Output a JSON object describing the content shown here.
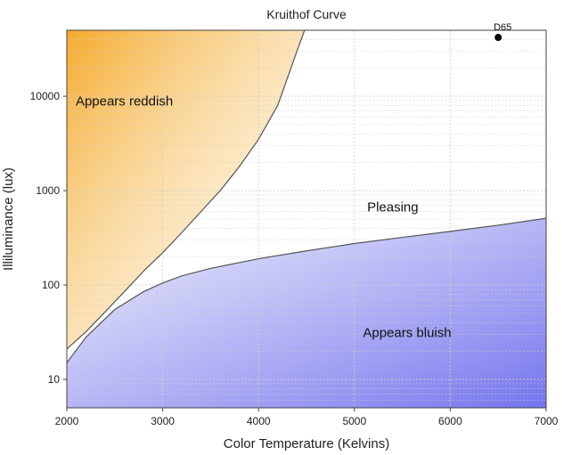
{
  "chart_data": {
    "type": "line",
    "title": "Kruithof Curve",
    "xlabel": "Color Temperature (Kelvins)",
    "ylabel": "Illiluminance (lux)",
    "xlim": [
      2000,
      7000
    ],
    "ylim": [
      5,
      50000
    ],
    "yscale": "log",
    "grid": true,
    "x_ticks": [
      {
        "value": 2000,
        "label": "2000"
      },
      {
        "value": 3000,
        "label": "3000"
      },
      {
        "value": 4000,
        "label": "4000"
      },
      {
        "value": 5000,
        "label": "5000"
      },
      {
        "value": 6000,
        "label": "6000"
      },
      {
        "value": 7000,
        "label": "7000"
      }
    ],
    "y_ticks": [
      {
        "value": 10,
        "label": "10"
      },
      {
        "value": 100,
        "label": "100"
      },
      {
        "value": 1000,
        "label": "1000"
      },
      {
        "value": 10000,
        "label": "10000"
      }
    ],
    "series": [
      {
        "x": [
          2000,
          2200,
          2400,
          2600,
          2800,
          3000,
          3200,
          3400,
          3600,
          3800,
          4000,
          4200,
          4400,
          4480
        ],
        "y": [
          21,
          32,
          52,
          85,
          140,
          220,
          360,
          600,
          1000,
          1800,
          3500,
          8000,
          30000,
          50000
        ],
        "color": "#555555"
      },
      {
        "x": [
          2000,
          2200,
          2500,
          2800,
          3000,
          3200,
          3500,
          4000,
          4500,
          5000,
          5500,
          6000,
          6500,
          7000
        ],
        "y": [
          15,
          28,
          55,
          85,
          105,
          125,
          150,
          190,
          230,
          275,
          320,
          370,
          430,
          510
        ],
        "color": "#555555"
      }
    ],
    "annotations": [
      {
        "text": "Appears reddish",
        "x": 2600,
        "y": 8000
      },
      {
        "text": "Pleasing",
        "x": 5400,
        "y": 600
      },
      {
        "text": "Appears bluish",
        "x": 5550,
        "y": 28
      }
    ],
    "markers": [
      {
        "text": "D65",
        "x": 6500,
        "y": 42000,
        "color": "#000000"
      }
    ],
    "colors": {
      "reddish": "#f5a623",
      "bluish": "#7b7bf0",
      "grid": "#cfcfcf",
      "curve": "#555555"
    }
  }
}
